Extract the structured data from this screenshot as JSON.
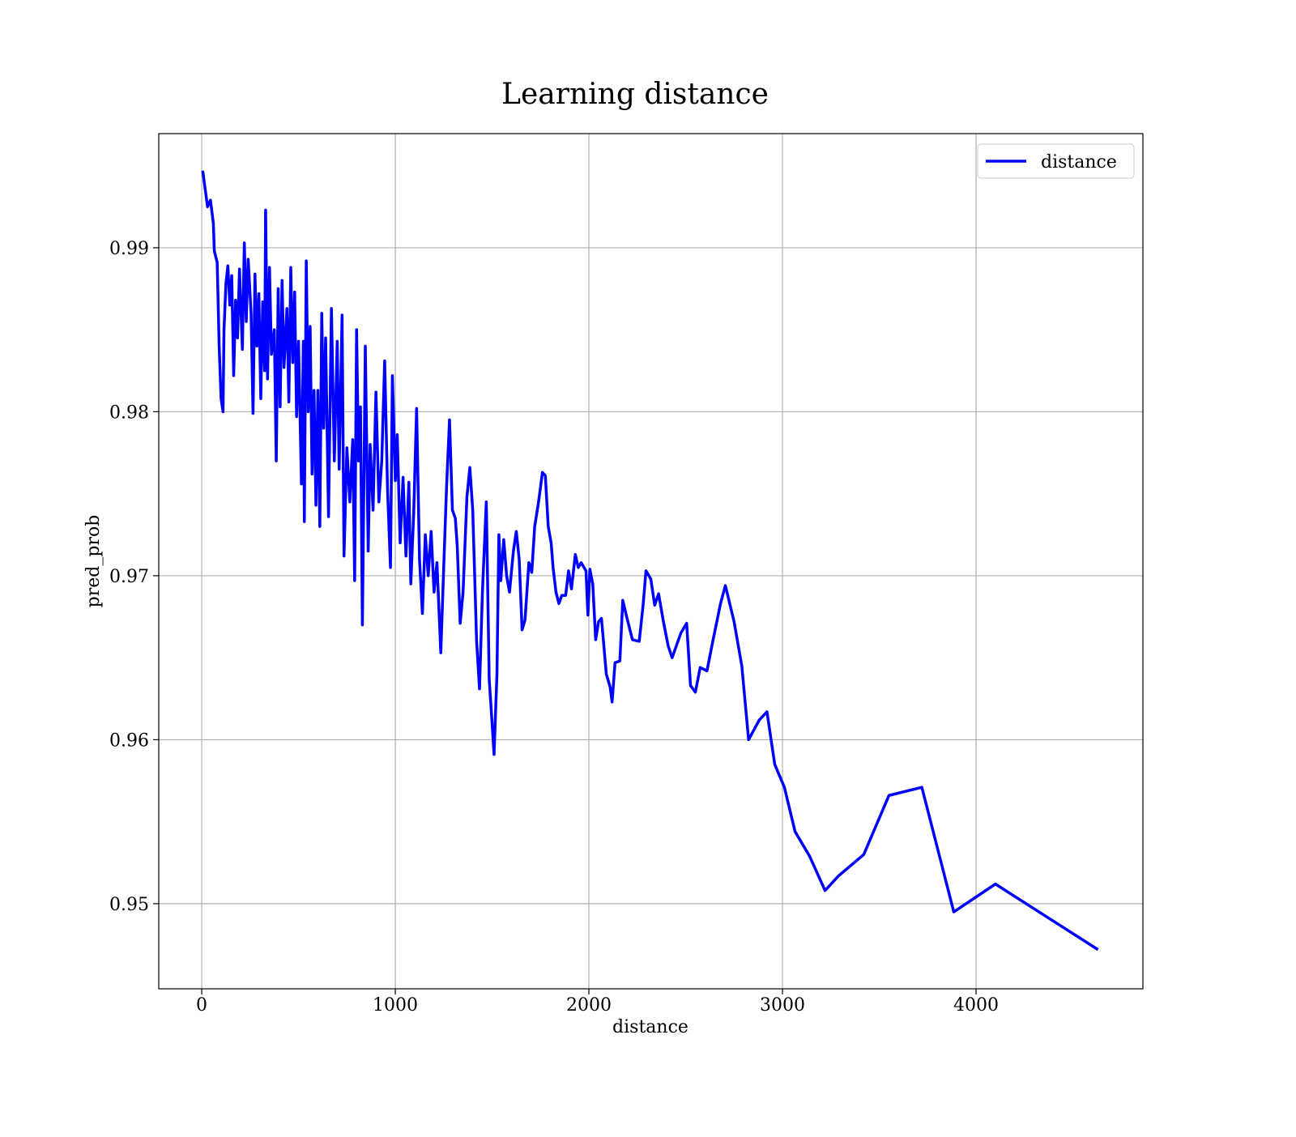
{
  "chart_data": {
    "type": "line",
    "title": "Learning distance",
    "x_label": "distance",
    "y_label": "pred_prob",
    "x": [
      5,
      30,
      45,
      60,
      65,
      80,
      90,
      100,
      110,
      115,
      125,
      135,
      145,
      155,
      165,
      175,
      185,
      195,
      210,
      220,
      230,
      240,
      255,
      265,
      275,
      285,
      295,
      305,
      315,
      325,
      330,
      340,
      350,
      360,
      375,
      385,
      395,
      405,
      415,
      425,
      440,
      450,
      460,
      470,
      480,
      490,
      500,
      515,
      525,
      530,
      540,
      550,
      560,
      570,
      580,
      590,
      600,
      610,
      620,
      630,
      640,
      655,
      670,
      685,
      700,
      710,
      725,
      735,
      750,
      765,
      780,
      790,
      800,
      810,
      820,
      830,
      845,
      860,
      870,
      885,
      900,
      915,
      930,
      945,
      960,
      975,
      985,
      1000,
      1010,
      1025,
      1040,
      1055,
      1070,
      1080,
      1095,
      1110,
      1125,
      1140,
      1155,
      1170,
      1185,
      1200,
      1215,
      1235,
      1250,
      1265,
      1280,
      1295,
      1310,
      1320,
      1335,
      1350,
      1370,
      1385,
      1400,
      1420,
      1435,
      1450,
      1470,
      1485,
      1500,
      1510,
      1525,
      1535,
      1545,
      1560,
      1575,
      1590,
      1610,
      1625,
      1640,
      1655,
      1670,
      1690,
      1705,
      1720,
      1740,
      1760,
      1775,
      1790,
      1805,
      1815,
      1830,
      1845,
      1860,
      1880,
      1895,
      1910,
      1930,
      1945,
      1960,
      1985,
      1995,
      2005,
      2020,
      2035,
      2050,
      2065,
      2090,
      2110,
      2120,
      2135,
      2160,
      2175,
      2195,
      2225,
      2260,
      2280,
      2295,
      2320,
      2340,
      2360,
      2385,
      2410,
      2430,
      2475,
      2505,
      2525,
      2550,
      2575,
      2610,
      2640,
      2680,
      2705,
      2750,
      2790,
      2825,
      2880,
      2920,
      2960,
      3010,
      3065,
      3140,
      3220,
      3290,
      3420,
      3550,
      3720,
      3885,
      4100,
      4630
    ],
    "series": [
      {
        "name": "distance",
        "color": "#0000ff",
        "values": [
          0.9947,
          0.9925,
          0.9929,
          0.9915,
          0.9898,
          0.9891,
          0.984,
          0.9808,
          0.98,
          0.985,
          0.9878,
          0.9889,
          0.9865,
          0.9883,
          0.9822,
          0.9868,
          0.9845,
          0.9887,
          0.9838,
          0.9903,
          0.9855,
          0.9893,
          0.986,
          0.9799,
          0.9884,
          0.984,
          0.9872,
          0.9808,
          0.9867,
          0.9825,
          0.9923,
          0.982,
          0.9888,
          0.9835,
          0.985,
          0.977,
          0.9875,
          0.9803,
          0.988,
          0.9827,
          0.9863,
          0.9806,
          0.9888,
          0.983,
          0.9873,
          0.9797,
          0.9843,
          0.9756,
          0.9843,
          0.9733,
          0.9892,
          0.98,
          0.9852,
          0.9762,
          0.9813,
          0.9743,
          0.9813,
          0.973,
          0.986,
          0.979,
          0.9845,
          0.9736,
          0.9863,
          0.977,
          0.9843,
          0.9765,
          0.9859,
          0.9712,
          0.9778,
          0.9745,
          0.9783,
          0.9697,
          0.985,
          0.977,
          0.9803,
          0.967,
          0.984,
          0.9715,
          0.978,
          0.974,
          0.9812,
          0.9745,
          0.977,
          0.9831,
          0.9752,
          0.9705,
          0.9822,
          0.9758,
          0.9786,
          0.972,
          0.976,
          0.9712,
          0.9757,
          0.9695,
          0.9738,
          0.9802,
          0.971,
          0.9677,
          0.9725,
          0.97,
          0.9727,
          0.969,
          0.9708,
          0.9653,
          0.9705,
          0.9755,
          0.9795,
          0.974,
          0.9735,
          0.9718,
          0.9671,
          0.969,
          0.9748,
          0.9766,
          0.974,
          0.966,
          0.9631,
          0.969,
          0.9745,
          0.9637,
          0.961,
          0.9591,
          0.964,
          0.9725,
          0.9697,
          0.9722,
          0.97,
          0.969,
          0.9715,
          0.9727,
          0.971,
          0.9667,
          0.9673,
          0.9708,
          0.9702,
          0.973,
          0.9745,
          0.9763,
          0.9761,
          0.973,
          0.972,
          0.9705,
          0.969,
          0.9683,
          0.9688,
          0.9688,
          0.9703,
          0.9692,
          0.9713,
          0.9705,
          0.9708,
          0.9703,
          0.9676,
          0.9704,
          0.9695,
          0.9661,
          0.9672,
          0.9674,
          0.964,
          0.9632,
          0.9623,
          0.9647,
          0.9648,
          0.9685,
          0.9675,
          0.9661,
          0.966,
          0.9682,
          0.9703,
          0.9698,
          0.9682,
          0.9689,
          0.9672,
          0.9657,
          0.965,
          0.9665,
          0.9671,
          0.9633,
          0.9629,
          0.9644,
          0.9642,
          0.966,
          0.9683,
          0.9694,
          0.9672,
          0.9645,
          0.96,
          0.9612,
          0.9617,
          0.9585,
          0.9571,
          0.9544,
          0.9529,
          0.9508,
          0.9517,
          0.953,
          0.9566,
          0.9571,
          0.9495,
          0.9512,
          0.9472
        ]
      }
    ],
    "xlim": [
      -222,
      4862
    ],
    "ylim": [
      0.94481,
      0.99696
    ],
    "xticks": [
      0,
      1000,
      2000,
      3000,
      4000
    ],
    "yticks": [
      0.95,
      0.96,
      0.97,
      0.98,
      0.99
    ],
    "grid": true,
    "legend": "upper right"
  }
}
